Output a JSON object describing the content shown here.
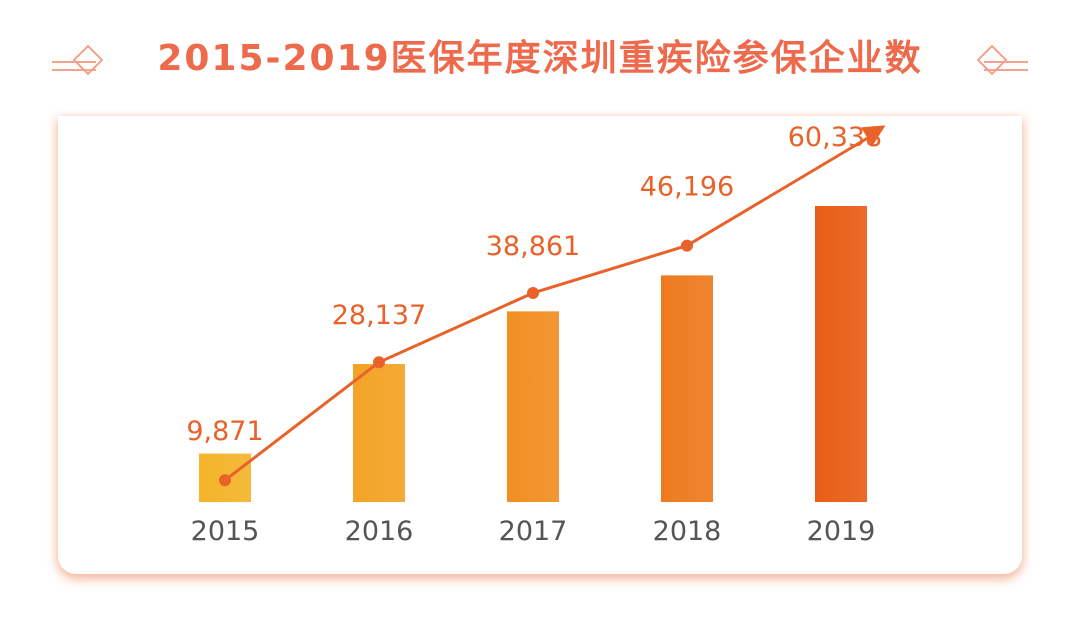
{
  "title": "2015-2019医保年度深圳重疾险参保企业数",
  "colors": {
    "title": "#ee6a4c",
    "line": "#e8622a",
    "label": "#e8622a",
    "tick": "#555555"
  },
  "chart_data": {
    "type": "bar",
    "title": "2015-2019医保年度深圳重疾险参保企业数",
    "categories": [
      "2015",
      "2016",
      "2017",
      "2018",
      "2019"
    ],
    "values": [
      9871,
      28137,
      38861,
      46196,
      60338
    ],
    "value_labels": [
      "9,871",
      "28,137",
      "38,861",
      "46,196",
      "60,338"
    ],
    "bar_colors": [
      "#f4b42a",
      "#f3a326",
      "#f18e22",
      "#ee7a1e",
      "#e85e16"
    ],
    "overlay": {
      "type": "line",
      "arrow": true,
      "color": "#e8622a"
    },
    "xlabel": "",
    "ylabel": "",
    "grid": false,
    "legend": "none"
  }
}
